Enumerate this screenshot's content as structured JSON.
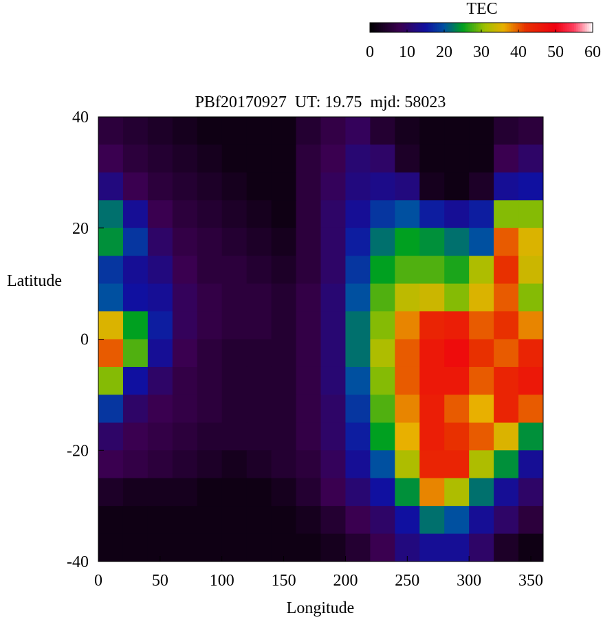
{
  "chart_data": {
    "type": "heatmap",
    "title": "PBf20170927  UT: 19.75  mjd: 58023",
    "x_label": "Longitude",
    "y_label": "Latitude",
    "colorbar_label": "TEC",
    "x_bins": [
      0,
      20,
      40,
      60,
      80,
      100,
      120,
      140,
      160,
      180,
      200,
      220,
      240,
      260,
      280,
      300,
      320,
      340,
      360
    ],
    "y_bins": [
      40,
      35,
      30,
      25,
      20,
      15,
      10,
      5,
      0,
      -5,
      -10,
      -15,
      -20,
      -25,
      -30,
      -35,
      -40
    ],
    "xlim": [
      0,
      360
    ],
    "ylim": [
      -40,
      40
    ],
    "xticks": [
      0,
      50,
      100,
      150,
      200,
      250,
      300,
      350
    ],
    "yticks": [
      -40,
      -20,
      0,
      20,
      40
    ],
    "clim": [
      0,
      60
    ],
    "cticks": [
      0,
      10,
      20,
      30,
      40,
      50,
      60
    ],
    "colormap": [
      {
        "value": 0,
        "color": "#000000"
      },
      {
        "value": 8,
        "color": "#3a0050"
      },
      {
        "value": 15,
        "color": "#1010a0"
      },
      {
        "value": 20,
        "color": "#0050a0"
      },
      {
        "value": 25,
        "color": "#00a020"
      },
      {
        "value": 31,
        "color": "#a0c000"
      },
      {
        "value": 36,
        "color": "#e8b000"
      },
      {
        "value": 42,
        "color": "#e83000"
      },
      {
        "value": 50,
        "color": "#f00010"
      },
      {
        "value": 55,
        "color": "#ff4060"
      },
      {
        "value": 60,
        "color": "#ffffff"
      }
    ],
    "z": [
      [
        6,
        5,
        4,
        3,
        2,
        2,
        2,
        2,
        5,
        7,
        9,
        5,
        3,
        2,
        2,
        2,
        5,
        6
      ],
      [
        8,
        6,
        5,
        4,
        3,
        2,
        2,
        2,
        6,
        8,
        11,
        10,
        4,
        2,
        2,
        2,
        8,
        10
      ],
      [
        12,
        8,
        6,
        5,
        4,
        3,
        2,
        2,
        6,
        9,
        12,
        13,
        12,
        3,
        2,
        4,
        14,
        15
      ],
      [
        22,
        14,
        8,
        6,
        5,
        4,
        3,
        2,
        6,
        10,
        14,
        18,
        20,
        16,
        14,
        16,
        30,
        30
      ],
      [
        24,
        18,
        10,
        7,
        6,
        5,
        4,
        3,
        6,
        10,
        16,
        22,
        25,
        24,
        22,
        20,
        40,
        35
      ],
      [
        18,
        14,
        12,
        8,
        6,
        6,
        5,
        4,
        6,
        10,
        18,
        25,
        28,
        28,
        26,
        32,
        42,
        34
      ],
      [
        20,
        15,
        14,
        9,
        7,
        6,
        6,
        5,
        7,
        11,
        20,
        28,
        33,
        34,
        30,
        35,
        40,
        30
      ],
      [
        35,
        25,
        16,
        9,
        7,
        6,
        6,
        5,
        7,
        11,
        22,
        30,
        38,
        44,
        45,
        40,
        42,
        38
      ],
      [
        40,
        28,
        14,
        8,
        6,
        5,
        5,
        5,
        7,
        11,
        22,
        32,
        40,
        46,
        48,
        42,
        40,
        44
      ],
      [
        30,
        15,
        10,
        7,
        6,
        5,
        5,
        5,
        7,
        11,
        20,
        30,
        40,
        46,
        46,
        40,
        44,
        46
      ],
      [
        18,
        10,
        8,
        7,
        6,
        5,
        5,
        5,
        7,
        10,
        18,
        28,
        38,
        45,
        40,
        36,
        44,
        40
      ],
      [
        10,
        8,
        7,
        6,
        5,
        5,
        5,
        5,
        7,
        10,
        16,
        25,
        36,
        45,
        42,
        40,
        35,
        24
      ],
      [
        8,
        7,
        6,
        5,
        4,
        3,
        4,
        5,
        6,
        9,
        14,
        20,
        32,
        44,
        44,
        32,
        24,
        14
      ],
      [
        4,
        3,
        3,
        3,
        2,
        2,
        2,
        3,
        5,
        8,
        11,
        15,
        24,
        38,
        32,
        22,
        14,
        10
      ],
      [
        2,
        2,
        2,
        2,
        2,
        2,
        2,
        2,
        3,
        5,
        8,
        10,
        15,
        22,
        20,
        14,
        10,
        6
      ],
      [
        2,
        2,
        2,
        2,
        2,
        2,
        2,
        2,
        2,
        3,
        5,
        8,
        12,
        14,
        14,
        10,
        4,
        2
      ]
    ]
  }
}
